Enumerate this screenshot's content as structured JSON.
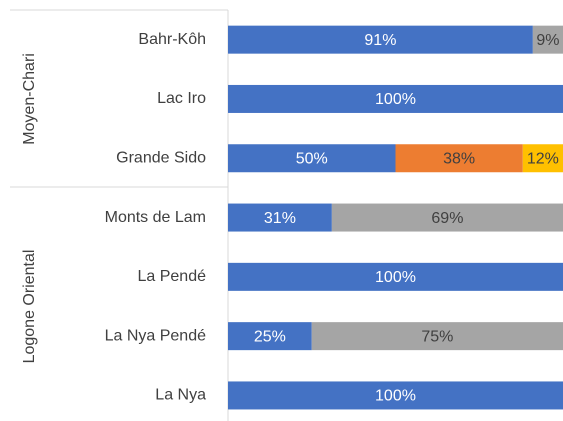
{
  "chart_data": {
    "type": "stacked_bar_horizontal",
    "category_groups": [
      {
        "name": "Moyen-Chari",
        "categories": [
          "Bahr-Kôh",
          "Lac Iro",
          "Grande Sido"
        ]
      },
      {
        "name": "Logone Oriental",
        "categories": [
          "Monts de Lam",
          "La Pendé",
          "La Nya Pendé",
          "La Nya"
        ]
      }
    ],
    "xlim": [
      0,
      100
    ],
    "series": [
      {
        "color": "#4472c4",
        "label_color": "#ffffff",
        "values": [
          91,
          100,
          50,
          31,
          100,
          25,
          100
        ],
        "value_labels": [
          "91%",
          "100%",
          "50%",
          "31%",
          "100%",
          "25%",
          "100%"
        ]
      },
      {
        "color": "#ed7d31",
        "label_color": "#404040",
        "values": [
          null,
          null,
          38,
          null,
          null,
          null,
          null
        ],
        "value_labels": [
          null,
          null,
          "38%",
          null,
          null,
          null,
          null
        ]
      },
      {
        "color": "#ffc000",
        "label_color": "#404040",
        "values": [
          null,
          null,
          12,
          null,
          null,
          null,
          null
        ],
        "value_labels": [
          null,
          null,
          "12%",
          null,
          null,
          null,
          null
        ]
      },
      {
        "color": "#a5a5a5",
        "label_color": "#404040",
        "values": [
          9,
          null,
          null,
          69,
          null,
          75,
          null
        ],
        "value_labels": [
          "9%",
          null,
          null,
          "69%",
          null,
          "75%",
          null
        ]
      }
    ]
  }
}
